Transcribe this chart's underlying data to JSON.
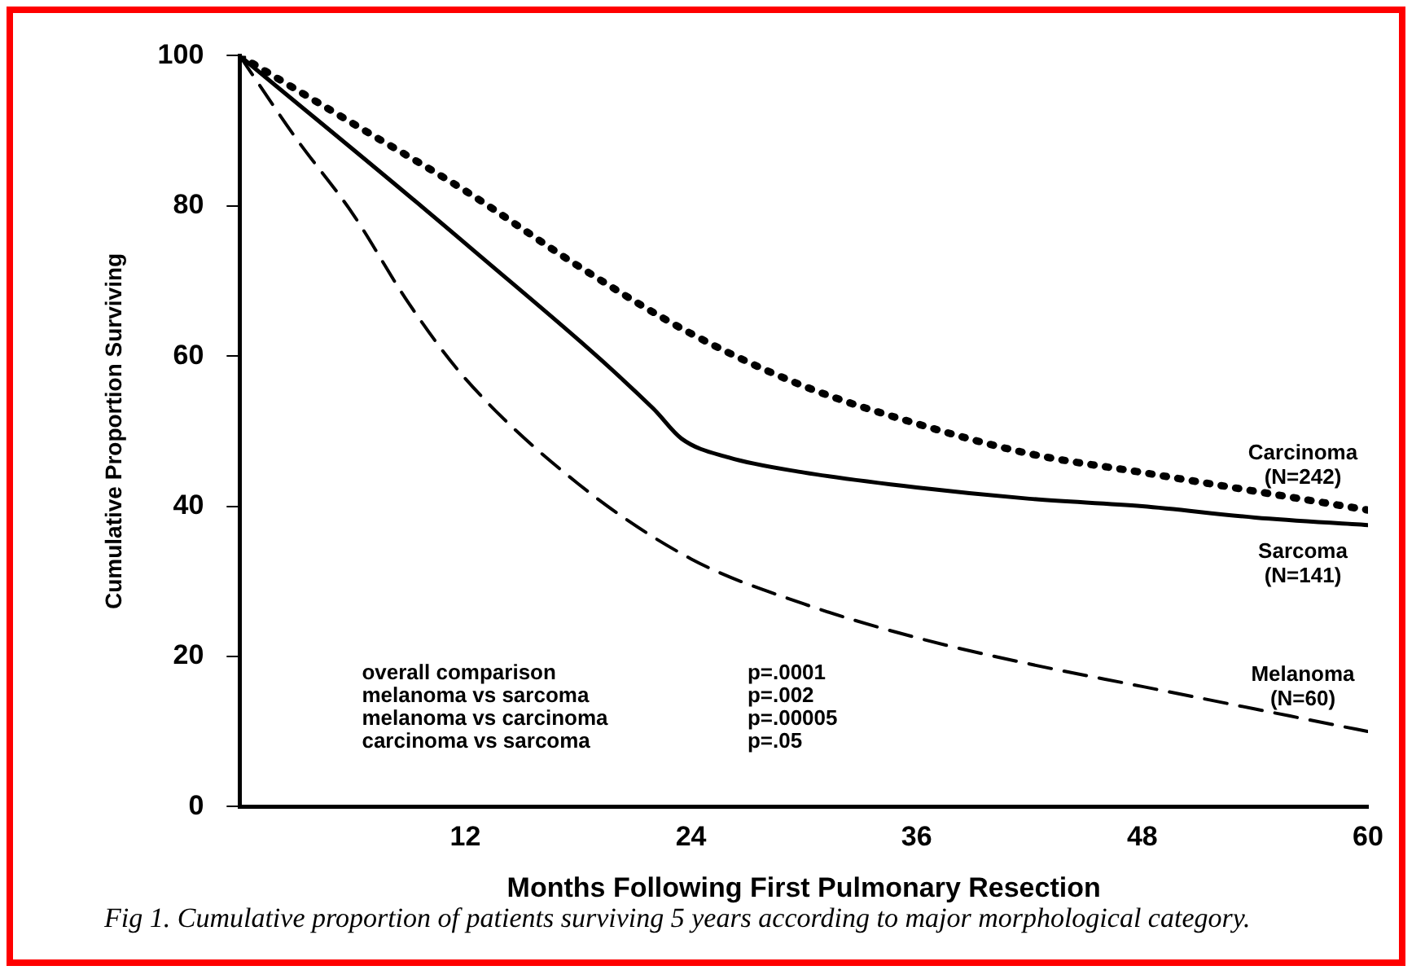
{
  "chart_data": {
    "type": "line",
    "xlabel": "Months Following First Pulmonary Resection",
    "ylabel": "Cumulative Proportion Surviving",
    "xlim": [
      0,
      60
    ],
    "xticks": [
      12,
      24,
      36,
      48,
      60
    ],
    "ylim": [
      0,
      100
    ],
    "yticks": [
      0,
      20,
      40,
      60,
      80,
      100
    ],
    "grid": false,
    "legend": false,
    "marker": "none",
    "series": [
      {
        "name": "Carcinoma\n(N=242)",
        "color": "#000000",
        "line_style": "dotted",
        "x": [
          0,
          6,
          12,
          18,
          24,
          30,
          36,
          42,
          48,
          54,
          60
        ],
        "values": [
          100,
          91,
          82,
          72,
          63,
          56,
          51,
          47,
          44.5,
          42,
          39.5
        ]
      },
      {
        "name": "Sarcoma\n(N=141)",
        "color": "#000000",
        "line_style": "solid",
        "x": [
          0,
          12,
          22,
          23.5,
          26,
          30,
          36,
          42,
          48,
          54,
          60
        ],
        "values": [
          100,
          75,
          53,
          49,
          46.5,
          44.5,
          42.5,
          41,
          40,
          38.5,
          37.5
        ]
      },
      {
        "name": "Melanoma\n(N=60)",
        "color": "#000000",
        "line_style": "dashed",
        "x": [
          0,
          3,
          6,
          9,
          12,
          18,
          24,
          30,
          36,
          42,
          48,
          54,
          60
        ],
        "values": [
          100,
          89,
          79,
          67,
          57,
          43,
          33,
          27,
          22.5,
          19,
          16,
          13,
          10
        ]
      }
    ],
    "annotations": [
      "overall comparison",
      "p=.0001",
      "melanoma vs sarcoma",
      "p=.002",
      "melanoma vs carcinoma",
      "p=.00005",
      "carcinoma vs sarcoma",
      "p=.05",
      "Fig 1. Cumulative proportion of patients surviving 5 years according to major morphological category."
    ]
  }
}
